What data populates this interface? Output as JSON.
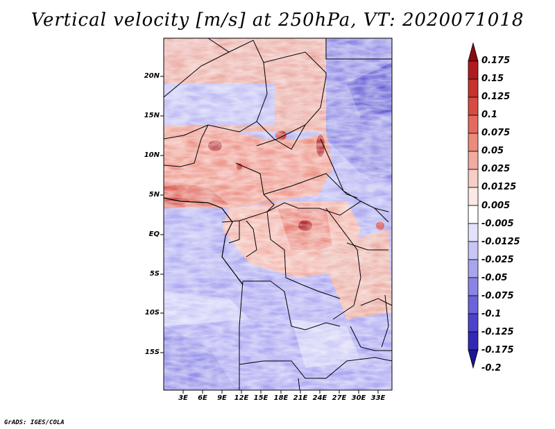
{
  "title": "Vertical velocity [m/s] at 250hPa, VT: 2020071018",
  "credit": "GrADS: IGES/COLA",
  "latitude_labels": [
    "20N",
    "15N",
    "10N",
    "5N",
    "EQ",
    "5S",
    "10S",
    "15S"
  ],
  "longitude_labels": [
    "3E",
    "6E",
    "9E",
    "12E",
    "15E",
    "18E",
    "21E",
    "24E",
    "27E",
    "30E",
    "33E"
  ],
  "colorbar": {
    "labels": [
      "0.175",
      "0.15",
      "0.125",
      "0.1",
      "0.075",
      "0.05",
      "0.025",
      "0.0125",
      "0.005",
      "-0.005",
      "-0.0125",
      "-0.025",
      "-0.05",
      "-0.075",
      "-0.1",
      "-0.125",
      "-0.175",
      "-0.2"
    ],
    "colors": [
      "#8b0a10",
      "#b21a1e",
      "#c8322d",
      "#d84b42",
      "#e36a5d",
      "#ec8a7c",
      "#f3aaa0",
      "#f8cdc6",
      "#fce8e4",
      "#ffffff",
      "#e3e2fb",
      "#c8c6f5",
      "#a8a4ee",
      "#8a84e6",
      "#6b63db",
      "#4c43cd",
      "#3129b6",
      "#1c1596"
    ]
  },
  "map": {
    "variable": "Vertical velocity",
    "units": "m/s",
    "level": "250hPa",
    "valid_time": "2020071018",
    "field_colors": {
      "positive_strong": "#c0392b",
      "positive": "#f0a595",
      "neutral": "#ffffff",
      "negative": "#9f9cf0",
      "negative_strong": "#4a44c8"
    }
  }
}
